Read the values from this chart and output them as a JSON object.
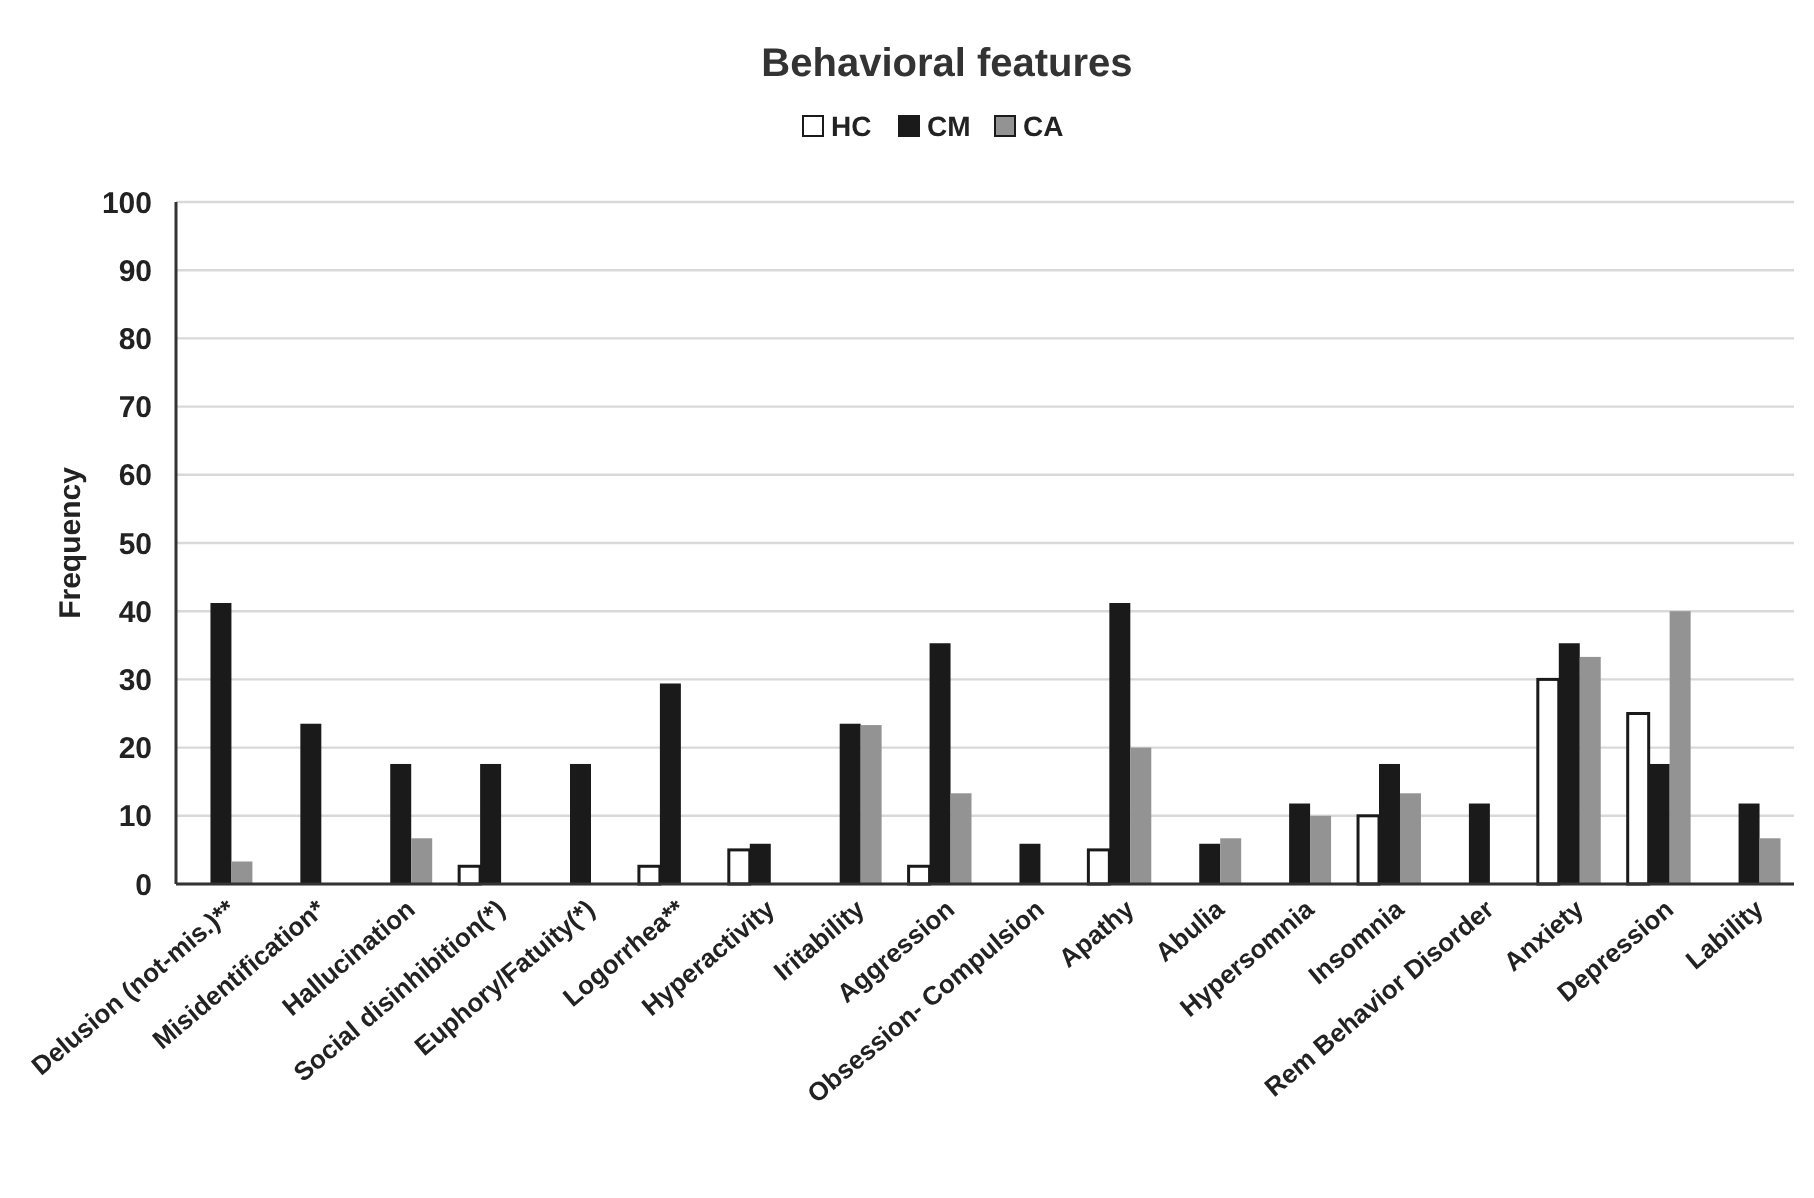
{
  "chart_data": {
    "type": "bar",
    "title": "Behavioral features",
    "ylabel": "Frequency",
    "categories": [
      "Delusion (not-mis.)**",
      "Misidentification*",
      "Hallucination",
      "Social disinhibition(*)",
      "Euphory/Fatuity(*)",
      "Logorrhea**",
      "Hyperactivity",
      "Iritability",
      "Aggression",
      "Obsession- Compulsion",
      "Apathy",
      "Abulia",
      "Hypersomnia",
      "Insomnia",
      "Rem Behavior Disorder",
      "Anxiety",
      "Depression",
      "Lability"
    ],
    "series": [
      {
        "name": "HC",
        "color": "#ffffff",
        "values": [
          0,
          0,
          0,
          2.6,
          0,
          2.6,
          5,
          0,
          2.6,
          0,
          5,
          0,
          0,
          10,
          0,
          30,
          25,
          0
        ]
      },
      {
        "name": "CM",
        "color": "#1a1a1a",
        "values": [
          41.2,
          23.5,
          17.6,
          17.6,
          17.6,
          29.4,
          5.9,
          23.5,
          35.3,
          5.9,
          41.2,
          5.9,
          11.8,
          17.6,
          11.8,
          35.3,
          17.6,
          11.8
        ]
      },
      {
        "name": "CA",
        "color": "#939393",
        "values": [
          3.3,
          0,
          6.7,
          0,
          0,
          0,
          0,
          23.3,
          13.3,
          0,
          20,
          6.7,
          10,
          13.3,
          0,
          33.3,
          40,
          6.7
        ]
      }
    ],
    "ylim": [
      0,
      100
    ],
    "yticks": [
      0,
      10,
      20,
      30,
      40,
      50,
      60,
      70,
      80,
      90,
      100
    ],
    "grid": "y",
    "legend": "top"
  }
}
